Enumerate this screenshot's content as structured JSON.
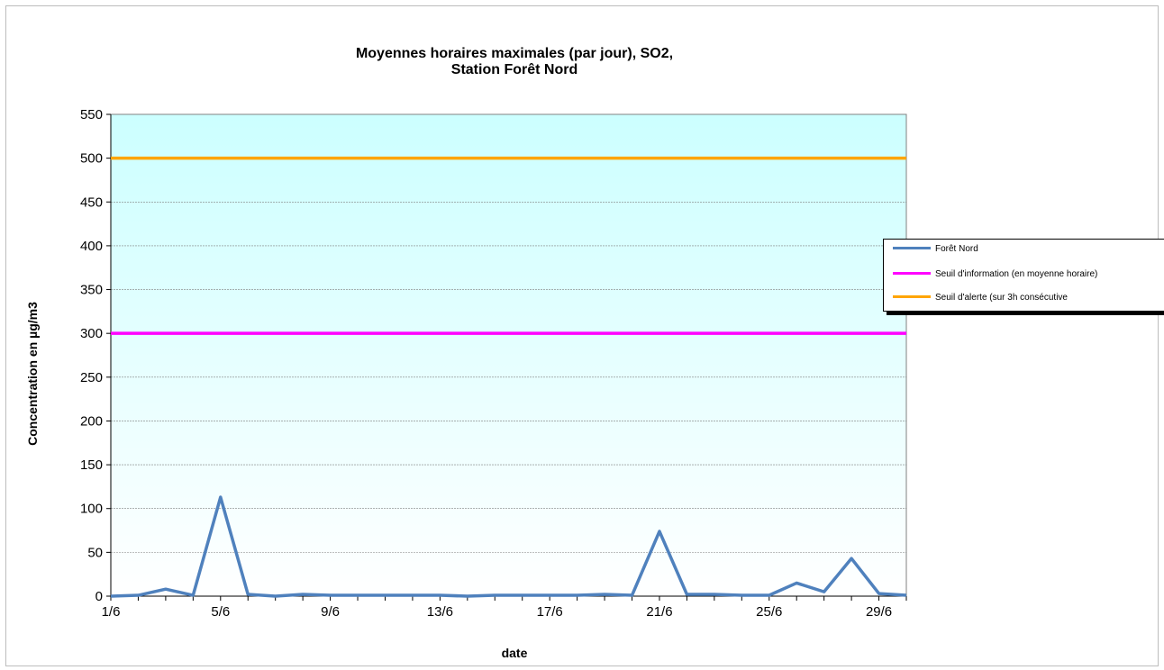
{
  "chart_data": {
    "type": "line",
    "title_lines": [
      "Moyennes horaires maximales (par jour), SO2,",
      "Station Forêt Nord"
    ],
    "xlabel": "date",
    "ylabel": "Concentration en µg/m3",
    "ylim": [
      0,
      550
    ],
    "y_ticks": [
      0,
      50,
      100,
      150,
      200,
      250,
      300,
      350,
      400,
      450,
      500,
      550
    ],
    "x_tick_labels": [
      "1/6",
      "5/6",
      "9/6",
      "13/6",
      "17/6",
      "21/6",
      "25/6",
      "29/6"
    ],
    "x_days": [
      1,
      2,
      3,
      4,
      5,
      6,
      7,
      8,
      9,
      10,
      11,
      12,
      13,
      14,
      15,
      16,
      17,
      18,
      19,
      20,
      21,
      22,
      23,
      24,
      25,
      26,
      27,
      28,
      29,
      30
    ],
    "grid": true,
    "legend_position": "right",
    "series": [
      {
        "name": "Forêt Nord",
        "color": "#4f81bd",
        "values": [
          0,
          1,
          8,
          1,
          113,
          2,
          0,
          2,
          1,
          1,
          1,
          1,
          1,
          0,
          1,
          1,
          1,
          1,
          2,
          1,
          74,
          2,
          2,
          1,
          1,
          15,
          5,
          43,
          3,
          1
        ]
      },
      {
        "name": "Seuil d'information (en moyenne horaire)",
        "color": "#ff00ff",
        "values": [
          300,
          300,
          300,
          300,
          300,
          300,
          300,
          300,
          300,
          300,
          300,
          300,
          300,
          300,
          300,
          300,
          300,
          300,
          300,
          300,
          300,
          300,
          300,
          300,
          300,
          300,
          300,
          300,
          300,
          300
        ]
      },
      {
        "name": "Seuil d'alerte (sur 3h consécutive",
        "color": "#ffa500",
        "values": [
          500,
          500,
          500,
          500,
          500,
          500,
          500,
          500,
          500,
          500,
          500,
          500,
          500,
          500,
          500,
          500,
          500,
          500,
          500,
          500,
          500,
          500,
          500,
          500,
          500,
          500,
          500,
          500,
          500,
          500
        ]
      }
    ],
    "plot_background": [
      "#ccffff",
      "#ffffff"
    ]
  }
}
